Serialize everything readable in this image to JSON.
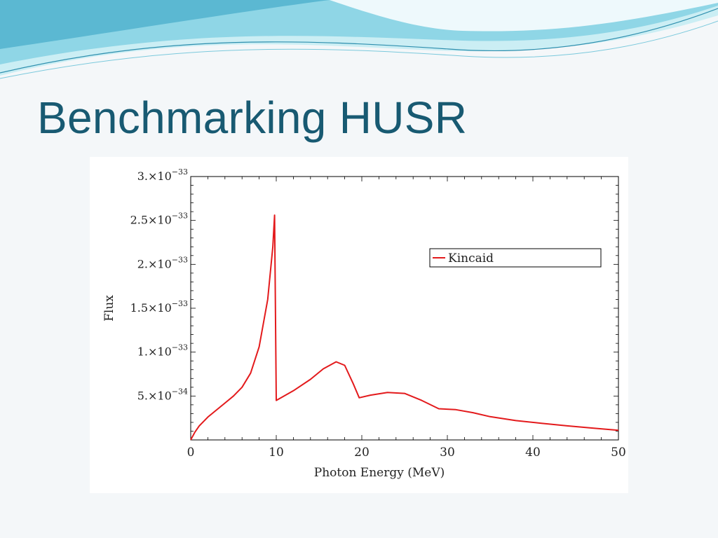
{
  "slide": {
    "title": "Benchmarking HUSR"
  },
  "colors": {
    "title": "#185a72",
    "series": "#e31a1c",
    "wave_light": "#b9e6ef",
    "wave_mid": "#7fcfe0",
    "wave_dark": "#3ea6c4"
  },
  "chart_data": {
    "type": "line",
    "xlabel": "Photon Energy (MeV)",
    "ylabel": "Flux",
    "xlim": [
      0,
      50
    ],
    "ylim": [
      0,
      3e-33
    ],
    "x_ticks": [
      0,
      10,
      20,
      30,
      40,
      50
    ],
    "y_ticks": [
      {
        "value": 5e-34,
        "mantissa": "5.",
        "exponent": "−34"
      },
      {
        "value": 1e-33,
        "mantissa": "1.",
        "exponent": "−33"
      },
      {
        "value": 1.5e-33,
        "mantissa": "1.5",
        "exponent": "−33"
      },
      {
        "value": 2e-33,
        "mantissa": "2.",
        "exponent": "−33"
      },
      {
        "value": 2.5e-33,
        "mantissa": "2.5",
        "exponent": "−33"
      },
      {
        "value": 3e-33,
        "mantissa": "3.",
        "exponent": "−33"
      }
    ],
    "legend": {
      "position": "top-right"
    },
    "series": [
      {
        "name": "Kincaid",
        "color": "#e31a1c",
        "points": [
          [
            0,
            1e-36
          ],
          [
            0.5,
            9e-35
          ],
          [
            1,
            1.6e-34
          ],
          [
            2,
            2.6e-34
          ],
          [
            3,
            3.4e-34
          ],
          [
            4,
            4.2e-34
          ],
          [
            5,
            5e-34
          ],
          [
            6,
            6e-34
          ],
          [
            7,
            7.6e-34
          ],
          [
            8,
            1.06e-33
          ],
          [
            9,
            1.6e-33
          ],
          [
            9.6,
            2.2e-33
          ],
          [
            9.8,
            2.56e-33
          ],
          [
            10,
            4.5e-34
          ],
          [
            12,
            5.6e-34
          ],
          [
            14,
            6.9e-34
          ],
          [
            15.5,
            8.1e-34
          ],
          [
            17,
            8.9e-34
          ],
          [
            18,
            8.5e-34
          ],
          [
            19,
            6.4e-34
          ],
          [
            19.7,
            4.8e-34
          ],
          [
            21,
            5.1e-34
          ],
          [
            23,
            5.4e-34
          ],
          [
            25,
            5.3e-34
          ],
          [
            27,
            4.5e-34
          ],
          [
            29,
            3.55e-34
          ],
          [
            31,
            3.45e-34
          ],
          [
            33,
            3.1e-34
          ],
          [
            35,
            2.65e-34
          ],
          [
            38,
            2.2e-34
          ],
          [
            41,
            1.9e-34
          ],
          [
            44,
            1.6e-34
          ],
          [
            47,
            1.35e-34
          ],
          [
            50,
            1.1e-34
          ]
        ]
      }
    ]
  }
}
